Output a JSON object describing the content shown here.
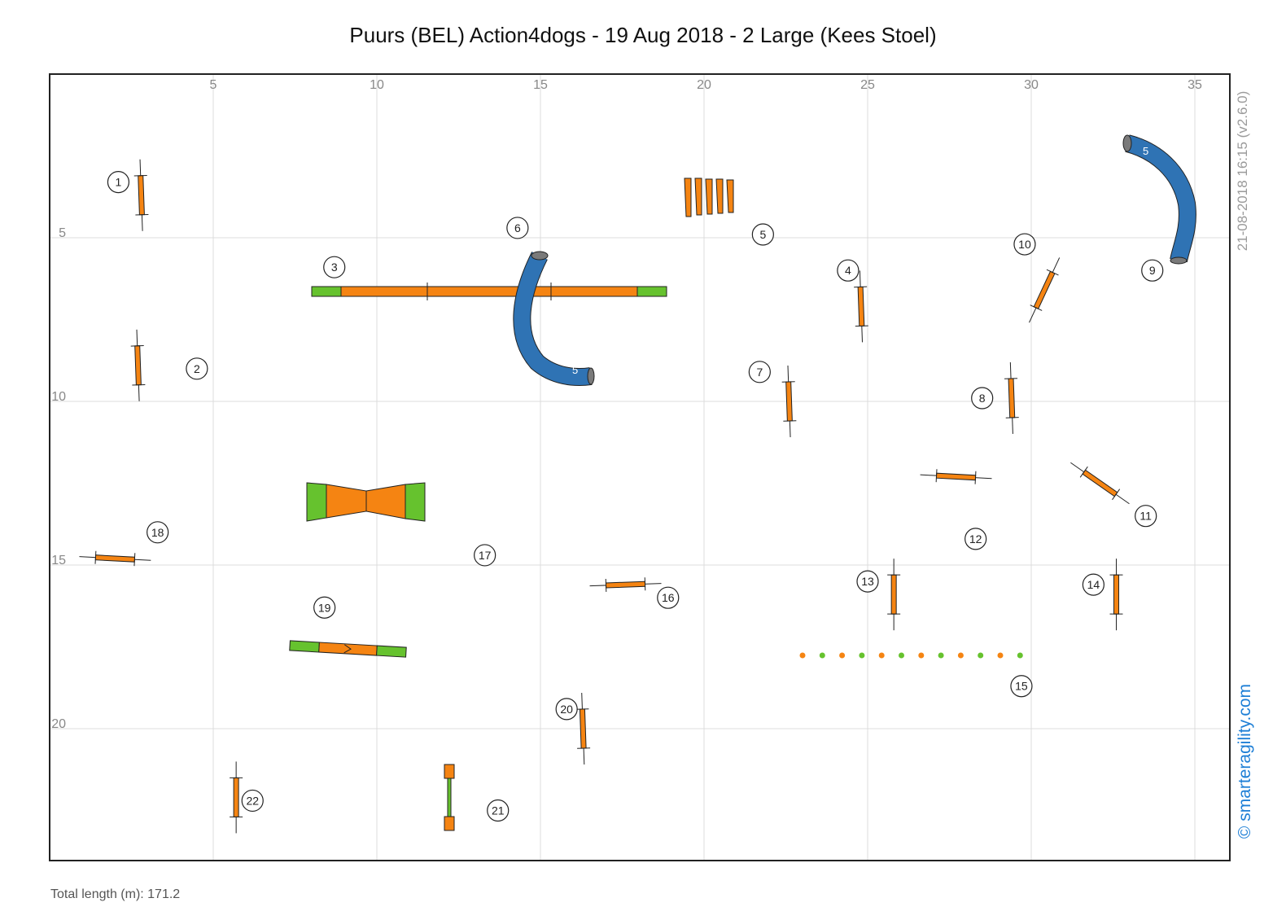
{
  "header": {
    "title": "Puurs (BEL) Action4dogs - 19 Aug 2018 - 2 Large (Kees Stoel)",
    "stamp": "21-08-2018 16:15  (v2.6.0)",
    "brand": "© smarteragility.com",
    "total_length": "Total length (m): 171.2"
  },
  "axes": {
    "x_ticks": [
      "5",
      "10",
      "15",
      "20",
      "25",
      "30",
      "35"
    ],
    "y_ticks": [
      "5",
      "10",
      "15",
      "20"
    ],
    "x_range_m": [
      0,
      36
    ],
    "y_range_m": [
      0,
      24
    ],
    "grid": true
  },
  "colors": {
    "bar": "#f58412",
    "contact": "#66c22e",
    "tunnel": "#2f73b4",
    "tunnel_end": "#7a7a7a",
    "outline": "#222222"
  },
  "course": {
    "numbers": [
      {
        "n": "1",
        "x": 2.1,
        "y": 3.3
      },
      {
        "n": "2",
        "x": 4.5,
        "y": 9.0
      },
      {
        "n": "3",
        "x": 8.7,
        "y": 5.9
      },
      {
        "n": "4",
        "x": 24.4,
        "y": 6.0
      },
      {
        "n": "5",
        "x": 21.8,
        "y": 4.9
      },
      {
        "n": "6",
        "x": 14.3,
        "y": 4.7
      },
      {
        "n": "7",
        "x": 21.7,
        "y": 9.1
      },
      {
        "n": "8",
        "x": 28.5,
        "y": 9.9
      },
      {
        "n": "9",
        "x": 33.7,
        "y": 6.0
      },
      {
        "n": "10",
        "x": 29.8,
        "y": 5.2
      },
      {
        "n": "11",
        "x": 33.5,
        "y": 13.5
      },
      {
        "n": "12",
        "x": 28.3,
        "y": 14.2
      },
      {
        "n": "13",
        "x": 25.0,
        "y": 15.5
      },
      {
        "n": "14",
        "x": 31.9,
        "y": 15.6
      },
      {
        "n": "15",
        "x": 29.7,
        "y": 18.7
      },
      {
        "n": "16",
        "x": 18.9,
        "y": 16.0
      },
      {
        "n": "17",
        "x": 13.3,
        "y": 14.7
      },
      {
        "n": "18",
        "x": 3.3,
        "y": 14.0
      },
      {
        "n": "19",
        "x": 8.4,
        "y": 16.3
      },
      {
        "n": "20",
        "x": 15.8,
        "y": 19.4
      },
      {
        "n": "21",
        "x": 13.7,
        "y": 22.5
      },
      {
        "n": "22",
        "x": 6.2,
        "y": 22.2
      }
    ],
    "jumps": [
      {
        "id": "1",
        "x": 2.8,
        "y": 3.7,
        "angle": 88
      },
      {
        "id": "2",
        "x": 2.7,
        "y": 8.9,
        "angle": 88
      },
      {
        "id": "4",
        "x": 24.8,
        "y": 7.1,
        "angle": 88
      },
      {
        "id": "7",
        "x": 22.6,
        "y": 10.0,
        "angle": 88
      },
      {
        "id": "8",
        "x": 29.4,
        "y": 9.9,
        "angle": 88
      },
      {
        "id": "10",
        "x": 30.4,
        "y": 6.6,
        "angle": 115
      },
      {
        "id": "11",
        "x": 32.1,
        "y": 12.5,
        "angle": 35
      },
      {
        "id": "12",
        "x": 27.7,
        "y": 12.3,
        "angle": 3
      },
      {
        "id": "13",
        "x": 25.8,
        "y": 15.9,
        "angle": 90
      },
      {
        "id": "14",
        "x": 32.6,
        "y": 15.9,
        "angle": 90
      },
      {
        "id": "16",
        "x": 17.6,
        "y": 15.6,
        "angle": -2
      },
      {
        "id": "18",
        "x": 2.0,
        "y": 14.8,
        "angle": 3
      },
      {
        "id": "20",
        "x": 16.3,
        "y": 20.0,
        "angle": 88
      },
      {
        "id": "22",
        "x": 5.7,
        "y": 22.1,
        "angle": 90
      }
    ]
  }
}
